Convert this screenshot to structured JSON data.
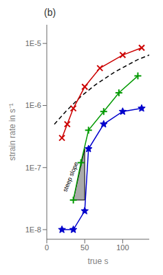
{
  "chart_data": {
    "type": "line",
    "title": "(b)",
    "xlabel": "true s",
    "ylabel": "strain rate in s⁻¹",
    "log": "y",
    "grid": false,
    "xlim": [
      0,
      135
    ],
    "xticks": [
      0,
      50,
      100
    ],
    "ylim": [
      7e-09,
      2e-05
    ],
    "yticks": [
      {
        "value": 1e-08,
        "label": "1E-8"
      },
      {
        "value": 1e-07,
        "label": "1E-7"
      },
      {
        "value": 1e-06,
        "label": "1E-6"
      },
      {
        "value": 1e-05,
        "label": "1E-5"
      }
    ],
    "series": [
      {
        "type": "line",
        "x": [
          10,
          25,
          45,
          65,
          90,
          120,
          135
        ],
        "values": [
          5e-07,
          8e-07,
          1.4e-06,
          2.2e-06,
          3.5e-06,
          5.5e-06,
          6.5e-06
        ],
        "color": "#000000",
        "line_style": "dashed",
        "marker": "none"
      },
      {
        "type": "line",
        "x": [
          20,
          27,
          35,
          50,
          70,
          100,
          125
        ],
        "values": [
          3e-07,
          5e-07,
          9e-07,
          2e-06,
          4e-06,
          6.5e-06,
          8.5e-06
        ],
        "color": "#cc0000",
        "line_style": "solid",
        "marker": "x"
      },
      {
        "type": "line",
        "x": [
          35,
          45,
          55,
          75,
          95,
          120
        ],
        "values": [
          3e-08,
          1.2e-07,
          4e-07,
          8e-07,
          1.6e-06,
          3e-06
        ],
        "color": "#009900",
        "line_style": "solid",
        "marker": "+"
      },
      {
        "type": "line",
        "x": [
          20,
          35,
          50,
          55,
          75,
          100,
          125
        ],
        "values": [
          1e-08,
          1e-08,
          2e-08,
          2e-07,
          5e-07,
          8e-07,
          9e-07
        ],
        "color": "#0000cc",
        "line_style": "solid",
        "marker": "*"
      },
      {
        "type": "polygon",
        "x": [
          35,
          50,
          50,
          35
        ],
        "values": [
          3e-08,
          3e-08,
          2e-07,
          3e-08
        ],
        "color": "#aaaaaa"
      }
    ],
    "annotations": [
      {
        "text": "steep slope",
        "x": 26,
        "y": 3.981071705534972e-08
      }
    ]
  }
}
